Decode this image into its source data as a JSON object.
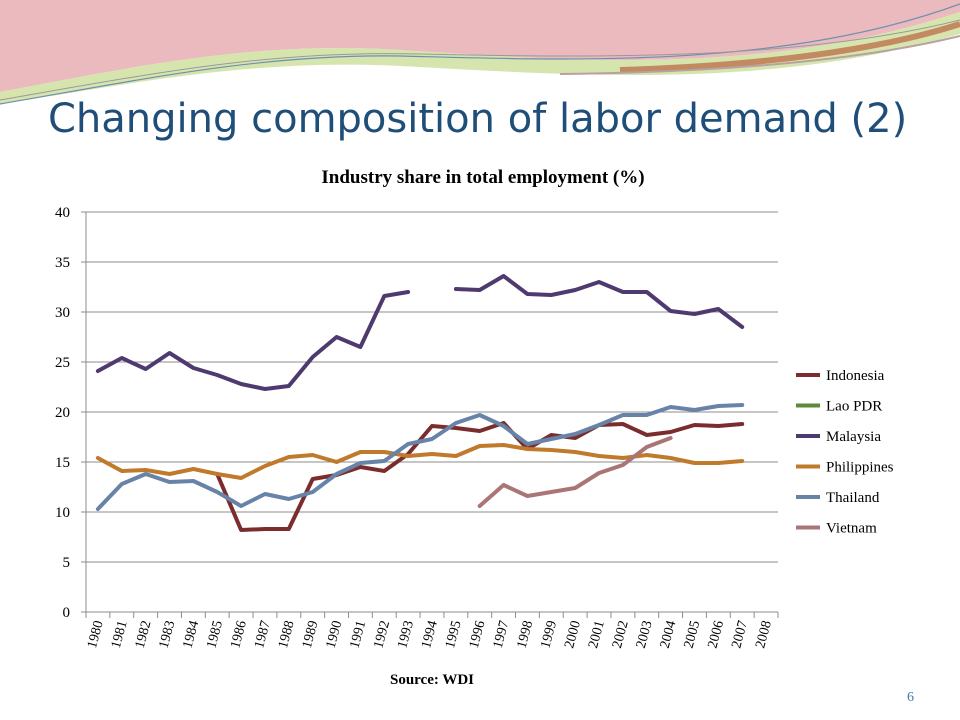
{
  "slide": {
    "title": "Changing composition of labor demand (2)",
    "page_number": "6"
  },
  "colors": {
    "Indonesia": "#7b2d2d",
    "Lao PDR": "#5e8a3a",
    "Malaysia": "#4f3a70",
    "Philippines": "#c07a2c",
    "Thailand": "#6883a8",
    "Vietnam": "#a97575"
  },
  "chart_data": {
    "type": "line",
    "title": "Industry share in total employment (%)",
    "xlabel": "Source: WDI",
    "ylabel": "",
    "x": [
      "1980",
      "1981",
      "1982",
      "1983",
      "1984",
      "1985",
      "1986",
      "1987",
      "1988",
      "1989",
      "1990",
      "1991",
      "1992",
      "1993",
      "1994",
      "1995",
      "1996",
      "1997",
      "1998",
      "1999",
      "2000",
      "2001",
      "2002",
      "2003",
      "2004",
      "2005",
      "2006",
      "2007",
      "2008"
    ],
    "ylim": [
      0,
      40
    ],
    "yticks": [
      "0",
      "5",
      "10",
      "15",
      "20",
      "25",
      "30",
      "35",
      "40"
    ],
    "grid": true,
    "legend": "right",
    "series": [
      {
        "name": "Indonesia",
        "values": [
          null,
          null,
          null,
          null,
          null,
          13.8,
          8.2,
          8.3,
          8.3,
          13.3,
          13.7,
          14.5,
          14.1,
          15.8,
          18.6,
          18.4,
          18.1,
          18.9,
          16.3,
          17.7,
          17.4,
          18.7,
          18.8,
          17.7,
          18.0,
          18.7,
          18.6,
          18.8,
          null
        ]
      },
      {
        "name": "Lao PDR",
        "values": [
          null,
          null,
          null,
          null,
          null,
          null,
          null,
          null,
          null,
          null,
          null,
          null,
          null,
          null,
          null,
          null,
          null,
          null,
          null,
          null,
          null,
          null,
          null,
          null,
          null,
          null,
          null,
          null,
          null
        ]
      },
      {
        "name": "Malaysia",
        "values": [
          24.1,
          25.4,
          24.3,
          25.9,
          24.4,
          23.7,
          22.8,
          22.3,
          22.6,
          25.5,
          27.5,
          26.5,
          31.6,
          32.0,
          null,
          32.3,
          32.2,
          33.6,
          31.8,
          31.7,
          32.2,
          33.0,
          32.0,
          32.0,
          30.1,
          29.8,
          30.3,
          28.5,
          null
        ]
      },
      {
        "name": "Philippines",
        "values": [
          15.4,
          14.1,
          14.2,
          13.8,
          14.3,
          13.8,
          13.4,
          14.6,
          15.5,
          15.7,
          15.0,
          16.0,
          16.0,
          15.6,
          15.8,
          15.6,
          16.6,
          16.7,
          16.3,
          16.2,
          16.0,
          15.6,
          15.4,
          15.7,
          15.4,
          14.9,
          14.9,
          15.1,
          null
        ]
      },
      {
        "name": "Thailand",
        "values": [
          10.3,
          12.8,
          13.8,
          13.0,
          13.1,
          12.0,
          10.6,
          11.8,
          11.3,
          12.0,
          13.8,
          14.9,
          15.1,
          16.8,
          17.3,
          18.9,
          19.7,
          18.6,
          16.8,
          17.3,
          17.8,
          18.7,
          19.7,
          19.7,
          20.5,
          20.2,
          20.6,
          20.7,
          null
        ]
      },
      {
        "name": "Vietnam",
        "values": [
          null,
          null,
          null,
          null,
          null,
          null,
          null,
          null,
          null,
          null,
          null,
          null,
          null,
          null,
          null,
          null,
          10.6,
          12.7,
          11.6,
          12.0,
          12.4,
          13.9,
          14.7,
          16.5,
          17.4,
          null,
          null,
          null,
          null
        ]
      }
    ]
  }
}
